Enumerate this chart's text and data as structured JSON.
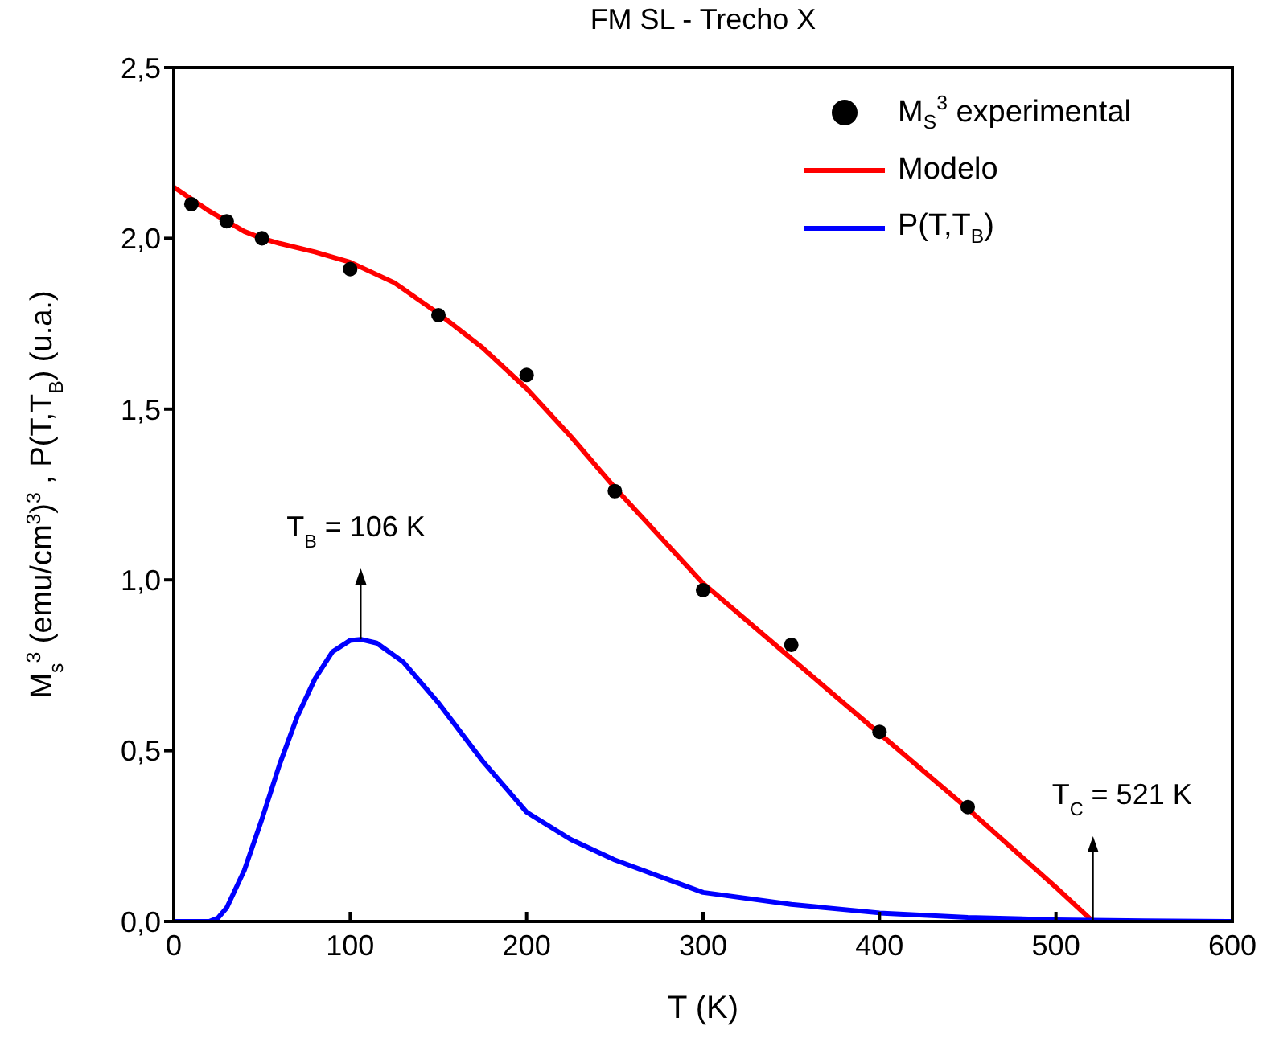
{
  "chart_data": {
    "type": "line",
    "title": "FM  SL - Trecho X",
    "xlabel": "T (K)",
    "ylabel": "M$_{s}$$^{3}$ (emu/cm$^{3}$)$^{3}$ , P(T,T$_{B}$) (u.a.)",
    "xlim": [
      0,
      600
    ],
    "xticks": [
      0,
      100,
      200,
      300,
      400,
      500,
      600
    ],
    "ylim": [
      0,
      2.5
    ],
    "yticks": [
      {
        "value": 0,
        "label": "0,0"
      },
      {
        "value": 0.5,
        "label": "0,5"
      },
      {
        "value": 1,
        "label": "1,0"
      },
      {
        "value": 1.5,
        "label": "1,5"
      },
      {
        "value": 2,
        "label": "2,0"
      },
      {
        "value": 2.5,
        "label": "2,5"
      }
    ],
    "legend": "top right",
    "series": [
      {
        "name": "M$_{S}$$^{3}$ experimental",
        "type": "scatter",
        "marker": "circle",
        "color": "#000000",
        "x": [
          10,
          30,
          50,
          100,
          150,
          200,
          250,
          300,
          350,
          400,
          450
        ],
        "values": [
          2.1,
          2.05,
          2.0,
          1.91,
          1.775,
          1.6,
          1.26,
          0.97,
          0.81,
          0.555,
          0.335
        ]
      },
      {
        "name": "Modelo",
        "marker": "none",
        "color": "#ff0000",
        "x": [
          0,
          20,
          40,
          50,
          60,
          80,
          100,
          125,
          150,
          175,
          200,
          225,
          250,
          275,
          300,
          350,
          400,
          450,
          500,
          521
        ],
        "values": [
          2.15,
          2.08,
          2.02,
          2.0,
          1.985,
          1.96,
          1.93,
          1.87,
          1.78,
          1.68,
          1.56,
          1.42,
          1.27,
          1.13,
          0.99,
          0.77,
          0.55,
          0.33,
          0.1,
          0
        ]
      },
      {
        "name": "P(T,T$_{B}$)",
        "marker": "none",
        "color": "#0000ff",
        "x": [
          0,
          20,
          25,
          30,
          40,
          50,
          60,
          70,
          80,
          90,
          100,
          106,
          115,
          130,
          150,
          175,
          200,
          225,
          250,
          300,
          350,
          400,
          450,
          500,
          550,
          600
        ],
        "values": [
          0,
          0,
          0.01,
          0.04,
          0.15,
          0.3,
          0.46,
          0.6,
          0.71,
          0.79,
          0.823,
          0.826,
          0.815,
          0.76,
          0.64,
          0.47,
          0.32,
          0.24,
          0.18,
          0.085,
          0.05,
          0.025,
          0.012,
          0.005,
          0.002,
          0
        ]
      }
    ],
    "annotations": [
      {
        "text": "T$_{B}$ = 106 K",
        "x": 106,
        "y": 0.826
      },
      {
        "text": "T$_{C}$ = 521 K",
        "x": 521,
        "y": 0
      }
    ]
  }
}
